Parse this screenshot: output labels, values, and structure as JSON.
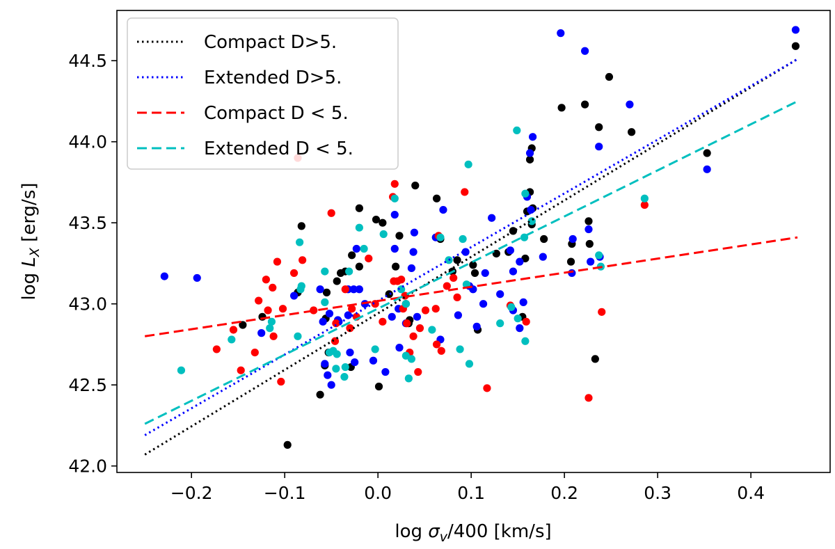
{
  "chart_data": {
    "type": "scatter",
    "title": "",
    "xlabel": {
      "prefix": "log ",
      "symbol": "σ",
      "subscript": "v",
      "suffix": "/400 [km/s]"
    },
    "ylabel": {
      "prefix": "log ",
      "symbol": "L",
      "subscript": "X",
      "suffix": " [erg/s]"
    },
    "xlim": [
      -0.28,
      0.485
    ],
    "ylim": [
      41.96,
      44.81
    ],
    "xticks": [
      -0.2,
      -0.1,
      0.0,
      0.1,
      0.2,
      0.3,
      0.4
    ],
    "xtick_labels": [
      "−0.2",
      "−0.1",
      "0.0",
      "0.1",
      "0.2",
      "0.3",
      "0.4"
    ],
    "yticks": [
      42.0,
      42.5,
      43.0,
      43.5,
      44.0,
      44.5
    ],
    "ytick_labels": [
      "42.0",
      "42.5",
      "43.0",
      "43.5",
      "44.0",
      "44.5"
    ],
    "legend_position": "top-left",
    "fit_lines": [
      {
        "name": "Compact D>5.",
        "color": "#000000",
        "style": "dotted",
        "x": [
          -0.25,
          0.45
        ],
        "y": [
          42.07,
          44.51
        ]
      },
      {
        "name": "Extended D>5.",
        "color": "#0000ff",
        "style": "dotted",
        "x": [
          -0.25,
          0.45
        ],
        "y": [
          42.19,
          44.51
        ]
      },
      {
        "name": "Compact D < 5.",
        "color": "#ff0000",
        "style": "dashed",
        "x": [
          -0.25,
          0.45
        ],
        "y": [
          42.8,
          43.41
        ]
      },
      {
        "name": "Extended D < 5.",
        "color": "#00bfbf",
        "style": "dashed",
        "x": [
          -0.25,
          0.45
        ],
        "y": [
          42.26,
          44.25
        ]
      }
    ],
    "legend_labels": [
      "Compact D>5.",
      "Extended D>5.",
      "Compact D < 5.",
      "Extended D < 5."
    ],
    "series": [
      {
        "name": "Compact D>5.",
        "color": "#000000",
        "points": [
          [
            0.448,
            44.59
          ],
          [
            0.248,
            44.4
          ],
          [
            0.222,
            44.23
          ],
          [
            0.197,
            44.21
          ],
          [
            0.237,
            44.09
          ],
          [
            0.272,
            44.06
          ],
          [
            0.353,
            43.93
          ],
          [
            0.165,
            43.96
          ],
          [
            0.163,
            43.89
          ],
          [
            0.163,
            43.69
          ],
          [
            0.166,
            43.59
          ],
          [
            0.165,
            43.49
          ],
          [
            0.16,
            43.57
          ],
          [
            0.145,
            43.45
          ],
          [
            0.14,
            43.32
          ],
          [
            0.158,
            43.28
          ],
          [
            0.178,
            43.4
          ],
          [
            0.208,
            43.37
          ],
          [
            0.207,
            43.26
          ],
          [
            0.226,
            43.51
          ],
          [
            0.227,
            43.37
          ],
          [
            0.233,
            42.66
          ],
          [
            0.155,
            42.92
          ],
          [
            0.107,
            42.84
          ],
          [
            0.102,
            43.24
          ],
          [
            0.104,
            43.19
          ],
          [
            0.085,
            43.27
          ],
          [
            0.08,
            43.2
          ],
          [
            0.067,
            43.4
          ],
          [
            0.063,
            43.65
          ],
          [
            0.04,
            43.73
          ],
          [
            0.023,
            43.42
          ],
          [
            0.019,
            43.23
          ],
          [
            0.034,
            42.9
          ],
          [
            0.033,
            42.88
          ],
          [
            0.03,
            43.0
          ],
          [
            0.005,
            43.5
          ],
          [
            -0.002,
            43.52
          ],
          [
            -0.02,
            43.59
          ],
          [
            -0.02,
            43.23
          ],
          [
            -0.028,
            43.3
          ],
          [
            -0.035,
            43.2
          ],
          [
            -0.04,
            43.19
          ],
          [
            -0.044,
            43.14
          ],
          [
            -0.029,
            42.61
          ],
          [
            -0.053,
            42.7
          ],
          [
            -0.057,
            42.62
          ],
          [
            -0.062,
            42.44
          ],
          [
            -0.055,
            43.07
          ],
          [
            -0.056,
            42.91
          ],
          [
            -0.086,
            43.07
          ],
          [
            -0.082,
            43.48
          ],
          [
            -0.097,
            42.13
          ],
          [
            -0.124,
            42.92
          ],
          [
            -0.145,
            42.87
          ],
          [
            0.001,
            42.49
          ],
          [
            0.012,
            43.06
          ],
          [
            0.127,
            43.31
          ]
        ]
      },
      {
        "name": "Extended D>5.",
        "color": "#0000ff",
        "points": [
          [
            0.448,
            44.69
          ],
          [
            0.196,
            44.67
          ],
          [
            0.222,
            44.56
          ],
          [
            0.27,
            44.23
          ],
          [
            0.166,
            44.03
          ],
          [
            0.163,
            43.93
          ],
          [
            0.237,
            43.97
          ],
          [
            0.353,
            43.83
          ],
          [
            0.16,
            43.66
          ],
          [
            0.164,
            43.58
          ],
          [
            0.122,
            43.53
          ],
          [
            0.07,
            43.58
          ],
          [
            0.018,
            43.55
          ],
          [
            0.039,
            43.44
          ],
          [
            0.018,
            43.34
          ],
          [
            0.038,
            43.32
          ],
          [
            0.036,
            43.22
          ],
          [
            0.062,
            43.41
          ],
          [
            0.094,
            43.32
          ],
          [
            0.098,
            43.11
          ],
          [
            0.102,
            43.09
          ],
          [
            0.113,
            43.0
          ],
          [
            0.106,
            42.86
          ],
          [
            0.086,
            42.93
          ],
          [
            0.067,
            42.78
          ],
          [
            0.03,
            42.88
          ],
          [
            0.022,
            42.97
          ],
          [
            0.015,
            42.92
          ],
          [
            0.023,
            42.73
          ],
          [
            0.042,
            42.92
          ],
          [
            0.008,
            42.58
          ],
          [
            0.115,
            43.19
          ],
          [
            0.145,
            43.2
          ],
          [
            0.142,
            43.33
          ],
          [
            0.152,
            43.26
          ],
          [
            0.152,
            42.85
          ],
          [
            0.156,
            43.01
          ],
          [
            0.177,
            43.29
          ],
          [
            0.209,
            43.4
          ],
          [
            0.208,
            43.19
          ],
          [
            0.226,
            43.46
          ],
          [
            0.228,
            43.26
          ],
          [
            0.238,
            43.29
          ],
          [
            -0.229,
            43.17
          ],
          [
            -0.194,
            43.16
          ],
          [
            -0.125,
            42.82
          ],
          [
            -0.09,
            43.05
          ],
          [
            -0.062,
            43.09
          ],
          [
            -0.059,
            42.89
          ],
          [
            -0.052,
            42.94
          ],
          [
            -0.057,
            42.63
          ],
          [
            -0.054,
            42.56
          ],
          [
            -0.05,
            42.5
          ],
          [
            -0.043,
            42.9
          ],
          [
            -0.032,
            43.09
          ],
          [
            -0.023,
            43.34
          ],
          [
            -0.02,
            43.09
          ],
          [
            -0.026,
            43.09
          ],
          [
            -0.025,
            42.64
          ],
          [
            -0.03,
            42.7
          ],
          [
            -0.014,
            43.0
          ],
          [
            -0.032,
            42.93
          ],
          [
            -0.005,
            42.65
          ],
          [
            -0.042,
            42.89
          ],
          [
            0.145,
            42.96
          ],
          [
            0.131,
            43.06
          ]
        ]
      },
      {
        "name": "Compact D < 5.",
        "color": "#ff0000",
        "points": [
          [
            -0.086,
            43.9
          ],
          [
            0.018,
            43.74
          ],
          [
            0.093,
            43.69
          ],
          [
            0.065,
            43.42
          ],
          [
            0.016,
            43.66
          ],
          [
            0.286,
            43.61
          ],
          [
            -0.05,
            43.56
          ],
          [
            -0.081,
            43.27
          ],
          [
            -0.108,
            43.26
          ],
          [
            -0.09,
            43.19
          ],
          [
            -0.113,
            43.1
          ],
          [
            -0.12,
            43.15
          ],
          [
            -0.118,
            42.96
          ],
          [
            -0.112,
            42.8
          ],
          [
            -0.102,
            42.97
          ],
          [
            -0.104,
            42.52
          ],
          [
            -0.128,
            43.02
          ],
          [
            -0.132,
            42.7
          ],
          [
            -0.173,
            42.72
          ],
          [
            -0.155,
            42.84
          ],
          [
            -0.147,
            42.59
          ],
          [
            -0.069,
            42.96
          ],
          [
            -0.045,
            42.88
          ],
          [
            -0.046,
            42.77
          ],
          [
            -0.035,
            43.09
          ],
          [
            -0.028,
            42.97
          ],
          [
            -0.03,
            42.85
          ],
          [
            -0.023,
            42.92
          ],
          [
            -0.01,
            43.28
          ],
          [
            -0.003,
            43.0
          ],
          [
            0.005,
            42.89
          ],
          [
            0.017,
            43.14
          ],
          [
            0.025,
            43.15
          ],
          [
            0.021,
            43.14
          ],
          [
            0.027,
            42.97
          ],
          [
            0.031,
            42.88
          ],
          [
            0.034,
            42.7
          ],
          [
            0.038,
            42.8
          ],
          [
            0.043,
            42.58
          ],
          [
            0.051,
            42.96
          ],
          [
            0.062,
            42.97
          ],
          [
            0.063,
            42.75
          ],
          [
            0.068,
            42.71
          ],
          [
            0.074,
            43.11
          ],
          [
            0.085,
            43.04
          ],
          [
            0.081,
            43.16
          ],
          [
            0.117,
            42.48
          ],
          [
            0.142,
            42.99
          ],
          [
            0.159,
            42.89
          ],
          [
            0.226,
            42.42
          ],
          [
            0.24,
            42.95
          ],
          [
            0.029,
            43.05
          ],
          [
            0.045,
            42.85
          ]
        ]
      },
      {
        "name": "Extended D < 5.",
        "color": "#00bfbf",
        "points": [
          [
            0.149,
            44.07
          ],
          [
            0.097,
            43.86
          ],
          [
            0.018,
            43.65
          ],
          [
            0.158,
            43.68
          ],
          [
            0.286,
            43.65
          ],
          [
            0.067,
            43.41
          ],
          [
            0.091,
            43.4
          ],
          [
            0.076,
            43.27
          ],
          [
            0.157,
            43.41
          ],
          [
            0.165,
            43.51
          ],
          [
            0.237,
            43.3
          ],
          [
            0.239,
            43.23
          ],
          [
            -0.157,
            42.78
          ],
          [
            -0.116,
            42.85
          ],
          [
            -0.114,
            42.89
          ],
          [
            -0.084,
            43.38
          ],
          [
            -0.083,
            43.09
          ],
          [
            -0.082,
            43.11
          ],
          [
            -0.086,
            42.8
          ],
          [
            -0.057,
            43.2
          ],
          [
            -0.057,
            43.01
          ],
          [
            -0.048,
            42.71
          ],
          [
            -0.045,
            42.6
          ],
          [
            -0.052,
            42.7
          ],
          [
            -0.044,
            42.69
          ],
          [
            -0.036,
            42.55
          ],
          [
            -0.035,
            42.61
          ],
          [
            -0.02,
            43.47
          ],
          [
            -0.015,
            43.34
          ],
          [
            -0.031,
            43.2
          ],
          [
            0.006,
            43.43
          ],
          [
            -0.003,
            42.72
          ],
          [
            0.025,
            43.09
          ],
          [
            0.03,
            43.0
          ],
          [
            0.03,
            42.68
          ],
          [
            0.036,
            42.66
          ],
          [
            0.033,
            42.54
          ],
          [
            0.058,
            42.84
          ],
          [
            0.088,
            42.72
          ],
          [
            0.098,
            42.63
          ],
          [
            0.131,
            42.88
          ],
          [
            0.143,
            42.98
          ],
          [
            0.15,
            42.91
          ],
          [
            0.158,
            42.77
          ],
          [
            -0.211,
            42.59
          ],
          [
            0.095,
            43.12
          ]
        ]
      }
    ]
  }
}
